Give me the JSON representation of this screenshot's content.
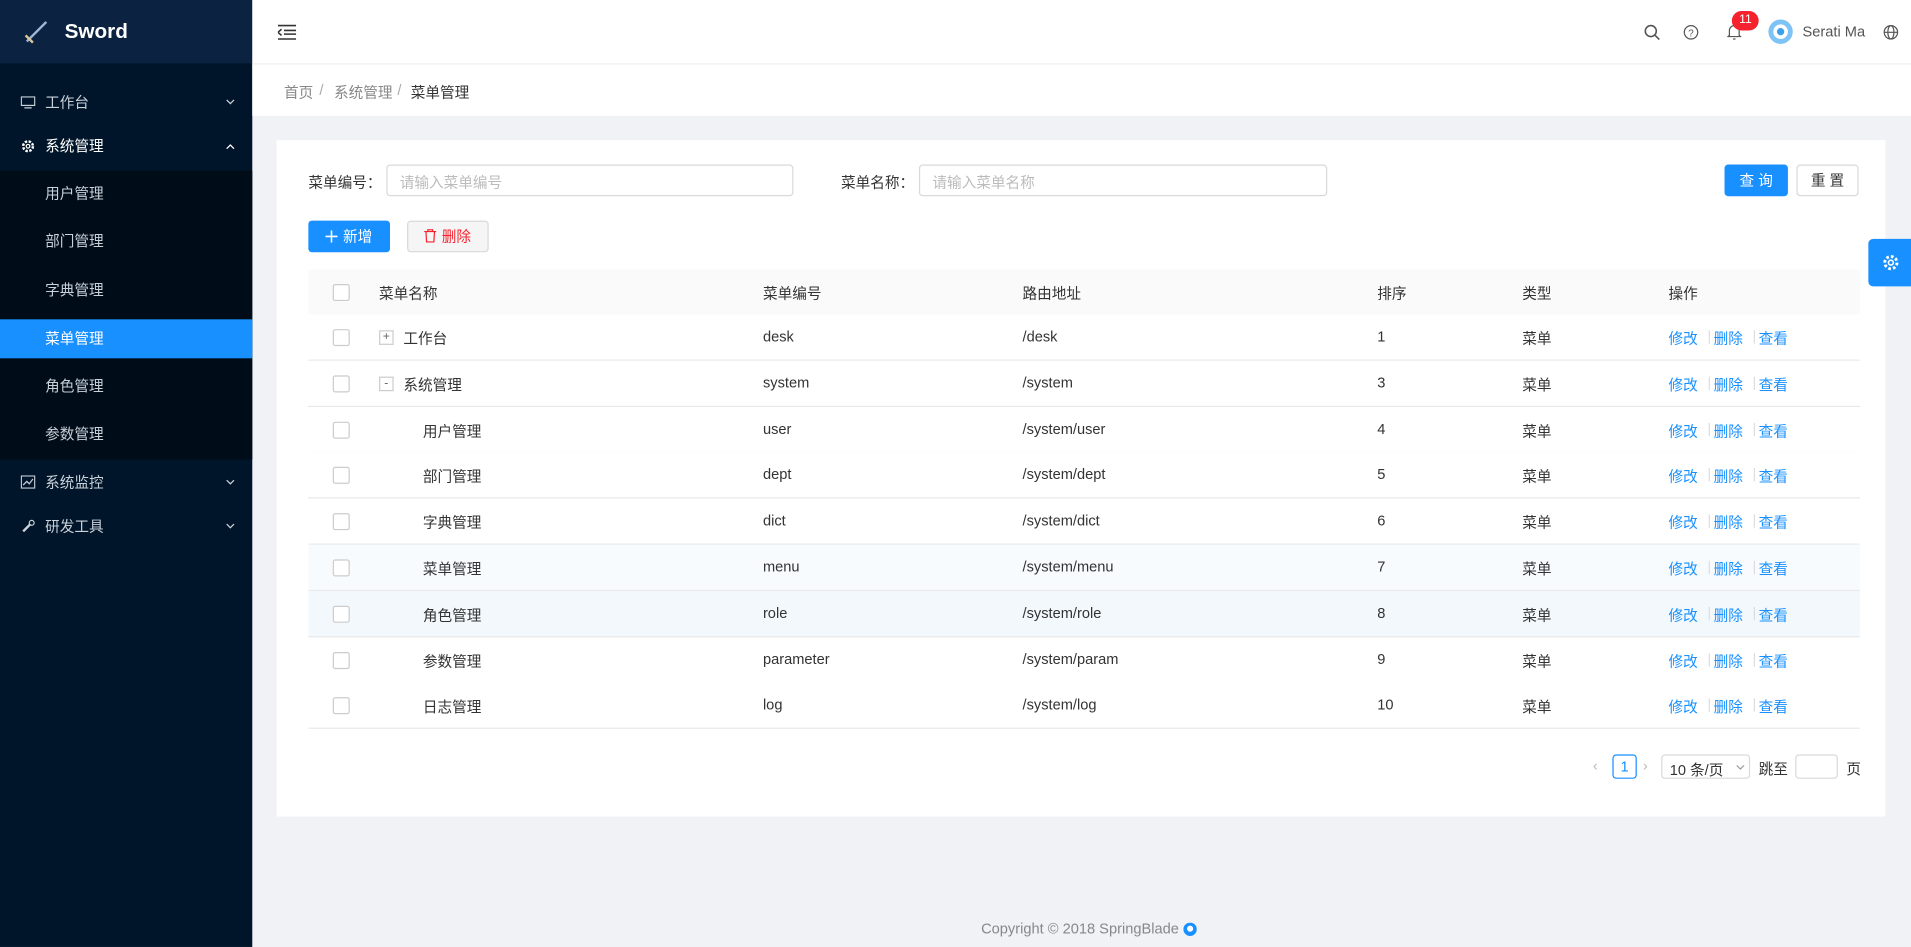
{
  "brand": "Sword",
  "sidebar": {
    "menus": [
      {
        "label": "工作台"
      },
      {
        "label": "系统管理",
        "children": [
          "用户管理",
          "部门管理",
          "字典管理",
          "菜单管理",
          "角色管理",
          "参数管理"
        ]
      },
      {
        "label": "系统监控"
      },
      {
        "label": "研发工具"
      }
    ]
  },
  "header": {
    "badge": "11",
    "user": "Serati Ma"
  },
  "breadcrumb": [
    "首页",
    "系统管理",
    "菜单管理"
  ],
  "search": {
    "fields": [
      {
        "label": "菜单编号：",
        "placeholder": "请输入菜单编号"
      },
      {
        "label": "菜单名称：",
        "placeholder": "请输入菜单名称"
      }
    ],
    "query": "查 询",
    "reset": "重 置"
  },
  "toolbar": {
    "add": "新增",
    "delete": "删除"
  },
  "table": {
    "columns": [
      "菜单名称",
      "菜单编号",
      "路由地址",
      "排序",
      "类型",
      "操作"
    ],
    "rows": [
      {
        "toggle": "+",
        "name": "工作台",
        "code": "desk",
        "path": "/desk",
        "sort": 1,
        "type": "菜单"
      },
      {
        "toggle": "-",
        "name": "系统管理",
        "code": "system",
        "path": "/system",
        "sort": 3,
        "type": "菜单",
        "children": [
          {
            "name": "用户管理",
            "code": "user",
            "path": "/system/user",
            "sort": 4,
            "type": "菜单"
          },
          {
            "name": "部门管理",
            "code": "dept",
            "path": "/system/dept",
            "sort": 5,
            "type": "菜单"
          },
          {
            "name": "字典管理",
            "code": "dict",
            "path": "/system/dict",
            "sort": 6,
            "type": "菜单"
          },
          {
            "name": "菜单管理",
            "code": "menu",
            "path": "/system/menu",
            "sort": 7,
            "type": "菜单"
          },
          {
            "name": "角色管理",
            "code": "role",
            "path": "/system/role",
            "sort": 8,
            "type": "菜单"
          },
          {
            "name": "参数管理",
            "code": "parameter",
            "path": "/system/param",
            "sort": 9,
            "type": "菜单"
          },
          {
            "name": "日志管理",
            "code": "log",
            "path": "/system/log",
            "sort": 10,
            "type": "菜单"
          }
        ]
      }
    ],
    "actions": [
      "修改",
      "删除",
      "查看"
    ]
  },
  "pagination": {
    "page": "1",
    "size": "10 条/页",
    "jump": "跳至",
    "unit": "页"
  },
  "footer": "Copyright © 2018 SpringBlade"
}
